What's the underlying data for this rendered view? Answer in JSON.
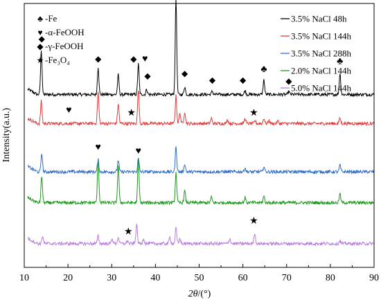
{
  "chart_data": {
    "type": "line",
    "xlabel_italic": "2θ",
    "xlabel_unit": "/(°)",
    "ylabel": "Intensity(a.u.)",
    "xlim": [
      10,
      90
    ],
    "x_ticks": [
      "10",
      "20",
      "30",
      "40",
      "50",
      "60",
      "70",
      "80",
      "90"
    ],
    "y_ticks_labeled": false,
    "grid": false,
    "legend_position": "top-right",
    "phase_legend_position": "top-left",
    "phases": [
      {
        "symbol": "♣",
        "label": "-Fe"
      },
      {
        "symbol": "♥",
        "label": "-α-FeOOH"
      },
      {
        "symbol": "◆",
        "label": "-γ-FeOOH"
      },
      {
        "symbol": "★",
        "label": "-Fe₃O₄"
      }
    ],
    "series": [
      {
        "name": "3.5% NaCl 48h",
        "color": "#000000",
        "baseline": 0.655,
        "peaks": [
          [
            13.9,
            0.17
          ],
          [
            26.9,
            0.105
          ],
          [
            31.5,
            0.075
          ],
          [
            36.1,
            0.115
          ],
          [
            38.0,
            0.02
          ],
          [
            44.7,
            0.365
          ],
          [
            46.7,
            0.03
          ],
          [
            53.0,
            0.012
          ],
          [
            60.5,
            0.015
          ],
          [
            64.8,
            0.055
          ],
          [
            70.5,
            0.012
          ],
          [
            82.2,
            0.08
          ]
        ]
      },
      {
        "name": "3.5% NaCl 144h",
        "color": "#e03c3c",
        "baseline": 0.545,
        "peaks": [
          [
            13.9,
            0.085
          ],
          [
            26.9,
            0.12
          ],
          [
            31.5,
            0.075
          ],
          [
            36.1,
            0.13
          ],
          [
            44.7,
            0.105
          ],
          [
            45.6,
            0.04
          ],
          [
            46.7,
            0.045
          ],
          [
            52.8,
            0.02
          ],
          [
            56.5,
            0.015
          ],
          [
            60.5,
            0.02
          ],
          [
            62.8,
            0.01
          ],
          [
            64.8,
            0.02
          ],
          [
            66.0,
            0.012
          ],
          [
            68.0,
            0.01
          ],
          [
            82.2,
            0.02
          ]
        ]
      },
      {
        "name": "3.5% NaCl 288h",
        "color": "#2e6cc8",
        "baseline": 0.362,
        "peaks": [
          [
            14.0,
            0.07
          ],
          [
            26.9,
            0.045
          ],
          [
            31.5,
            0.045
          ],
          [
            36.1,
            0.05
          ],
          [
            44.7,
            0.095
          ],
          [
            46.7,
            0.03
          ],
          [
            60.5,
            0.015
          ],
          [
            64.8,
            0.02
          ],
          [
            82.2,
            0.025
          ]
        ]
      },
      {
        "name": "2.0% NaCl 144h",
        "color": "#1a9a1a",
        "baseline": 0.245,
        "peaks": [
          [
            14.0,
            0.1
          ],
          [
            26.9,
            0.165
          ],
          [
            31.5,
            0.14
          ],
          [
            36.1,
            0.165
          ],
          [
            44.7,
            0.115
          ],
          [
            46.7,
            0.045
          ],
          [
            52.8,
            0.02
          ],
          [
            60.5,
            0.02
          ],
          [
            64.8,
            0.025
          ],
          [
            82.2,
            0.035
          ]
        ]
      },
      {
        "name": "5.0% NaCl 144h",
        "color": "#b77ee0",
        "baseline": 0.09,
        "peaks": [
          [
            14.2,
            0.03
          ],
          [
            26.9,
            0.03
          ],
          [
            30.1,
            0.02
          ],
          [
            31.5,
            0.025
          ],
          [
            33.6,
            0.012
          ],
          [
            35.7,
            0.075
          ],
          [
            37.3,
            0.02
          ],
          [
            43.3,
            0.025
          ],
          [
            44.7,
            0.06
          ],
          [
            45.6,
            0.02
          ],
          [
            57.0,
            0.02
          ],
          [
            62.7,
            0.04
          ],
          [
            82.2,
            0.012
          ]
        ]
      }
    ],
    "annotations": [
      {
        "symbol": "◆",
        "x": 14.0,
        "y": 0.855,
        "kind": "gamma"
      },
      {
        "symbol": "◆",
        "x": 26.9,
        "y": 0.78,
        "kind": "gamma"
      },
      {
        "symbol": "◆",
        "x": 35.0,
        "y": 0.78,
        "kind": "gamma"
      },
      {
        "symbol": "♥",
        "x": 37.6,
        "y": 0.78,
        "kind": "alpha"
      },
      {
        "symbol": "◆",
        "x": 38.2,
        "y": 0.715,
        "kind": "gamma"
      },
      {
        "symbol": "♣",
        "x": 44.7,
        "y": 1.04,
        "kind": "fe"
      },
      {
        "symbol": "◆",
        "x": 46.7,
        "y": 0.725,
        "kind": "gamma"
      },
      {
        "symbol": "◆",
        "x": 53.0,
        "y": 0.7,
        "kind": "gamma"
      },
      {
        "symbol": "◆",
        "x": 60.0,
        "y": 0.7,
        "kind": "gamma"
      },
      {
        "symbol": "♣",
        "x": 64.8,
        "y": 0.74,
        "kind": "fe"
      },
      {
        "symbol": "◆",
        "x": 70.5,
        "y": 0.695,
        "kind": "gamma"
      },
      {
        "symbol": "♣",
        "x": 82.2,
        "y": 0.77,
        "kind": "fe"
      },
      {
        "symbol": "♥",
        "x": 20.2,
        "y": 0.585,
        "kind": "alpha"
      },
      {
        "symbol": "★",
        "x": 34.5,
        "y": 0.575,
        "kind": "magnetite"
      },
      {
        "symbol": "★",
        "x": 62.5,
        "y": 0.575,
        "kind": "magnetite"
      },
      {
        "symbol": "♥",
        "x": 26.9,
        "y": 0.445,
        "kind": "alpha"
      },
      {
        "symbol": "♥",
        "x": 36.1,
        "y": 0.43,
        "kind": "alpha"
      },
      {
        "symbol": "★",
        "x": 33.8,
        "y": 0.125,
        "kind": "magnetite"
      },
      {
        "symbol": "★",
        "x": 62.5,
        "y": 0.165,
        "kind": "magnetite"
      }
    ]
  }
}
